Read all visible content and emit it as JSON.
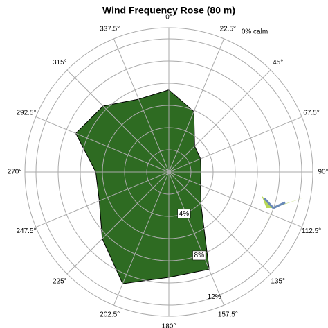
{
  "chart_data": {
    "type": "polar_area",
    "title": "Wind Frequency Rose (80 m)",
    "annotation": "0% calm",
    "categories": [
      "0°",
      "22.5°",
      "45°",
      "67.5°",
      "90°",
      "112.5°",
      "135°",
      "157.5°",
      "180°",
      "202.5°",
      "225°",
      "247.5°",
      "270°",
      "292.5°",
      "315°",
      "337.5°"
    ],
    "angles": [
      0,
      22.5,
      45,
      67.5,
      90,
      112.5,
      135,
      157.5,
      180,
      202.5,
      225,
      247.5,
      270,
      292.5,
      315,
      337.5
    ],
    "values": [
      7.4,
      5.9,
      3.3,
      3.1,
      2.9,
      3.1,
      4.1,
      9.5,
      9.5,
      10.9,
      8.5,
      6.8,
      6.6,
      9.1,
      8.4,
      7.1
    ],
    "color": "#2e6b22",
    "rlim": [
      0,
      13
    ],
    "rticks": [
      {
        "value": 4,
        "label": "4%"
      },
      {
        "value": 8,
        "label": "8%"
      },
      {
        "value": 12,
        "label": "12%"
      }
    ],
    "minor_rticks": [
      2,
      6,
      10
    ],
    "grid": true
  }
}
